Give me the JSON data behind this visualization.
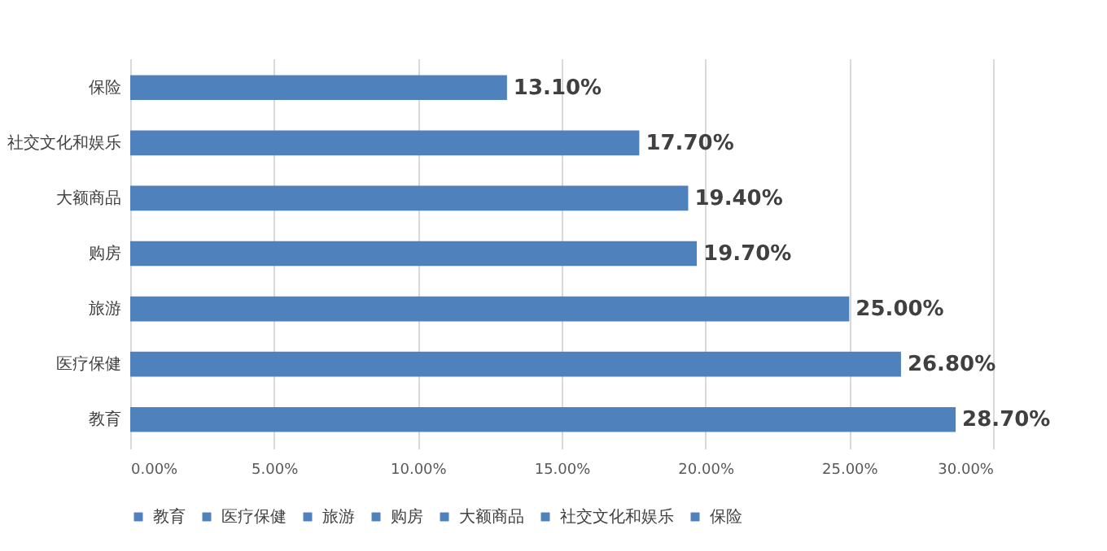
{
  "chart_data": {
    "type": "bar",
    "orientation": "horizontal",
    "categories": [
      "保险",
      "社交文化和娱乐",
      "大额商品",
      "购房",
      "旅游",
      "医疗保健",
      "教育"
    ],
    "series": [
      {
        "name": "教育",
        "color": "#4f81bd",
        "values": [
          null,
          null,
          null,
          null,
          null,
          null,
          28.7
        ],
        "value_labels": [
          null,
          null,
          null,
          null,
          null,
          null,
          "28.70%"
        ]
      },
      {
        "name": "医疗保健",
        "color": "#4f81bd",
        "values": [
          null,
          null,
          null,
          null,
          null,
          26.8,
          null
        ],
        "value_labels": [
          null,
          null,
          null,
          null,
          null,
          "26.80%",
          null
        ]
      },
      {
        "name": "旅游",
        "color": "#4f81bd",
        "values": [
          null,
          null,
          null,
          null,
          25.0,
          null,
          null
        ],
        "value_labels": [
          null,
          null,
          null,
          null,
          "25.00%",
          null,
          null
        ]
      },
      {
        "name": "购房",
        "color": "#4f81bd",
        "values": [
          null,
          null,
          null,
          19.7,
          null,
          null,
          null
        ],
        "value_labels": [
          null,
          null,
          null,
          "19.70%",
          null,
          null,
          null
        ]
      },
      {
        "name": "大额商品",
        "color": "#4f81bd",
        "values": [
          null,
          null,
          19.4,
          null,
          null,
          null,
          null
        ],
        "value_labels": [
          null,
          null,
          "19.40%",
          null,
          null,
          null,
          null
        ]
      },
      {
        "name": "社交文化和娱乐",
        "color": "#4f81bd",
        "values": [
          null,
          17.7,
          null,
          null,
          null,
          null,
          null
        ],
        "value_labels": [
          null,
          "17.70%",
          null,
          null,
          null,
          null,
          null
        ]
      },
      {
        "name": "保险",
        "color": "#4f81bd",
        "values": [
          13.1,
          null,
          null,
          null,
          null,
          null,
          null
        ],
        "value_labels": [
          "13.10%",
          null,
          null,
          null,
          null,
          null,
          null
        ]
      }
    ],
    "xlim": [
      0,
      30
    ],
    "xticks": [
      {
        "value": 0,
        "label": "0.00%"
      },
      {
        "value": 5,
        "label": "5.00%"
      },
      {
        "value": 10,
        "label": "10.00%"
      },
      {
        "value": 15,
        "label": "15.00%"
      },
      {
        "value": 20,
        "label": "20.00%"
      },
      {
        "value": 25,
        "label": "25.00%"
      },
      {
        "value": 30,
        "label": "30.00%"
      }
    ],
    "grid": "x",
    "legend": "bottom"
  }
}
